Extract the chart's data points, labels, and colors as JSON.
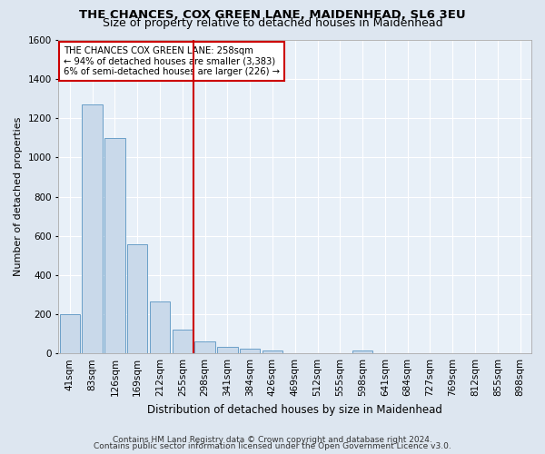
{
  "title1": "THE CHANCES, COX GREEN LANE, MAIDENHEAD, SL6 3EU",
  "title2": "Size of property relative to detached houses in Maidenhead",
  "xlabel": "Distribution of detached houses by size in Maidenhead",
  "ylabel": "Number of detached properties",
  "footer1": "Contains HM Land Registry data © Crown copyright and database right 2024.",
  "footer2": "Contains public sector information licensed under the Open Government Licence v3.0.",
  "bar_labels": [
    "41sqm",
    "83sqm",
    "126sqm",
    "169sqm",
    "212sqm",
    "255sqm",
    "298sqm",
    "341sqm",
    "384sqm",
    "426sqm",
    "469sqm",
    "512sqm",
    "555sqm",
    "598sqm",
    "641sqm",
    "684sqm",
    "727sqm",
    "769sqm",
    "812sqm",
    "855sqm",
    "898sqm"
  ],
  "bar_values": [
    200,
    1270,
    1100,
    555,
    265,
    120,
    60,
    33,
    22,
    15,
    0,
    0,
    0,
    15,
    0,
    0,
    0,
    0,
    0,
    0,
    0
  ],
  "bar_color": "#c9d9ea",
  "bar_edge_color": "#6a9fc8",
  "vline_index": 5.5,
  "vline_color": "#cc0000",
  "annotation_title": "THE CHANCES COX GREEN LANE: 258sqm",
  "annotation_line1": "← 94% of detached houses are smaller (3,383)",
  "annotation_line2": "6% of semi-detached houses are larger (226) →",
  "annotation_box_color": "#cc0000",
  "ylim": [
    0,
    1600
  ],
  "yticks": [
    0,
    200,
    400,
    600,
    800,
    1000,
    1200,
    1400,
    1600
  ],
  "bg_color": "#dde6f0",
  "plot_bg_color": "#e8f0f8",
  "grid_color": "#ffffff",
  "title1_fontsize": 9.5,
  "title2_fontsize": 9,
  "xlabel_fontsize": 8.5,
  "ylabel_fontsize": 8,
  "tick_fontsize": 7.5,
  "footer_fontsize": 6.5
}
